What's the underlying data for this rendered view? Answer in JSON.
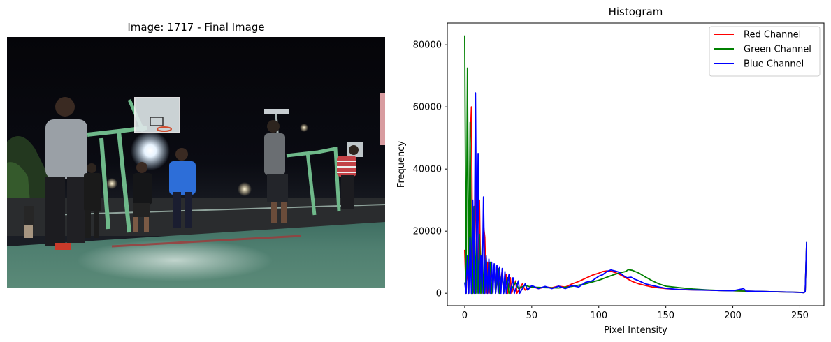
{
  "left_panel": {
    "title": "Image: 1717 - Final Image"
  },
  "chart_data": {
    "type": "line",
    "title": "Histogram",
    "xlabel": "Pixel Intensity",
    "ylabel": "Frequency",
    "xlim": [
      -13,
      268
    ],
    "ylim": [
      -4000,
      87000
    ],
    "xticks": [
      0,
      50,
      100,
      150,
      200,
      250
    ],
    "yticks": [
      0,
      20000,
      40000,
      60000,
      80000
    ],
    "grid": false,
    "legend": "top-right",
    "series": [
      {
        "name": "Red Channel",
        "color": "#ff0000",
        "points": [
          [
            0,
            14000
          ],
          [
            1,
            0
          ],
          [
            2,
            9000
          ],
          [
            3,
            0
          ],
          [
            4,
            48000
          ],
          [
            5,
            60000
          ],
          [
            6,
            0
          ],
          [
            7,
            5000
          ],
          [
            8,
            42000
          ],
          [
            9,
            0
          ],
          [
            10,
            8000
          ],
          [
            11,
            30000
          ],
          [
            12,
            0
          ],
          [
            13,
            10000
          ],
          [
            14,
            22000
          ],
          [
            15,
            18000
          ],
          [
            16,
            0
          ],
          [
            17,
            10000
          ],
          [
            18,
            0
          ],
          [
            19,
            9000
          ],
          [
            20,
            0
          ],
          [
            22,
            9000
          ],
          [
            23,
            0
          ],
          [
            25,
            8000
          ],
          [
            26,
            0
          ],
          [
            28,
            7500
          ],
          [
            29,
            0
          ],
          [
            31,
            6000
          ],
          [
            32,
            0
          ],
          [
            34,
            5000
          ],
          [
            35,
            0
          ],
          [
            38,
            4000
          ],
          [
            39,
            0
          ],
          [
            43,
            3000
          ],
          [
            45,
            1000
          ],
          [
            50,
            2200
          ],
          [
            55,
            1500
          ],
          [
            60,
            2000
          ],
          [
            65,
            1800
          ],
          [
            70,
            2300
          ],
          [
            75,
            2000
          ],
          [
            80,
            3000
          ],
          [
            85,
            3800
          ],
          [
            90,
            4800
          ],
          [
            95,
            5800
          ],
          [
            100,
            6500
          ],
          [
            103,
            7000
          ],
          [
            106,
            7200
          ],
          [
            110,
            7000
          ],
          [
            115,
            6200
          ],
          [
            120,
            5000
          ],
          [
            125,
            3800
          ],
          [
            130,
            3000
          ],
          [
            135,
            2500
          ],
          [
            140,
            2000
          ],
          [
            150,
            1500
          ],
          [
            160,
            1200
          ],
          [
            170,
            1100
          ],
          [
            180,
            1000
          ],
          [
            190,
            900
          ],
          [
            200,
            800
          ],
          [
            210,
            700
          ],
          [
            220,
            600
          ],
          [
            230,
            500
          ],
          [
            240,
            400
          ],
          [
            250,
            300
          ],
          [
            253,
            200
          ],
          [
            254,
            500
          ],
          [
            255,
            16000
          ]
        ]
      },
      {
        "name": "Green Channel",
        "color": "#008000",
        "points": [
          [
            0,
            83000
          ],
          [
            1,
            0
          ],
          [
            2,
            72500
          ],
          [
            3,
            0
          ],
          [
            4,
            55000
          ],
          [
            5,
            0
          ],
          [
            6,
            0
          ],
          [
            7,
            28000
          ],
          [
            8,
            0
          ],
          [
            9,
            22000
          ],
          [
            10,
            0
          ],
          [
            11,
            19000
          ],
          [
            12,
            0
          ],
          [
            13,
            16000
          ],
          [
            14,
            0
          ],
          [
            16,
            12000
          ],
          [
            17,
            0
          ],
          [
            19,
            10000
          ],
          [
            20,
            0
          ],
          [
            22,
            9000
          ],
          [
            23,
            0
          ],
          [
            25,
            8000
          ],
          [
            26,
            0
          ],
          [
            28,
            7000
          ],
          [
            29,
            0
          ],
          [
            32,
            5000
          ],
          [
            33,
            0
          ],
          [
            38,
            3500
          ],
          [
            40,
            1500
          ],
          [
            45,
            2500
          ],
          [
            50,
            2000
          ],
          [
            60,
            1800
          ],
          [
            70,
            1700
          ],
          [
            80,
            2200
          ],
          [
            90,
            3000
          ],
          [
            100,
            4200
          ],
          [
            110,
            5800
          ],
          [
            115,
            6500
          ],
          [
            120,
            7000
          ],
          [
            122,
            7600
          ],
          [
            125,
            7400
          ],
          [
            130,
            6500
          ],
          [
            135,
            5200
          ],
          [
            140,
            4000
          ],
          [
            145,
            3000
          ],
          [
            150,
            2300
          ],
          [
            160,
            1800
          ],
          [
            170,
            1400
          ],
          [
            180,
            1100
          ],
          [
            190,
            900
          ],
          [
            200,
            800
          ],
          [
            210,
            700
          ],
          [
            220,
            600
          ],
          [
            230,
            500
          ],
          [
            240,
            400
          ],
          [
            250,
            300
          ],
          [
            253,
            200
          ],
          [
            254,
            500
          ],
          [
            255,
            16500
          ]
        ]
      },
      {
        "name": "Blue Channel",
        "color": "#0000ff",
        "points": [
          [
            0,
            3500
          ],
          [
            1,
            0
          ],
          [
            2,
            12000
          ],
          [
            3,
            0
          ],
          [
            4,
            18000
          ],
          [
            5,
            0
          ],
          [
            6,
            30000
          ],
          [
            7,
            0
          ],
          [
            8,
            64500
          ],
          [
            9,
            0
          ],
          [
            10,
            45000
          ],
          [
            11,
            0
          ],
          [
            12,
            12000
          ],
          [
            13,
            0
          ],
          [
            14,
            31000
          ],
          [
            15,
            0
          ],
          [
            16,
            12000
          ],
          [
            17,
            0
          ],
          [
            18,
            11000
          ],
          [
            19,
            0
          ],
          [
            20,
            10000
          ],
          [
            21,
            0
          ],
          [
            22,
            9500
          ],
          [
            23,
            0
          ],
          [
            24,
            9000
          ],
          [
            25,
            0
          ],
          [
            26,
            8500
          ],
          [
            27,
            0
          ],
          [
            28,
            8000
          ],
          [
            29,
            0
          ],
          [
            30,
            7000
          ],
          [
            31,
            0
          ],
          [
            33,
            6000
          ],
          [
            34,
            0
          ],
          [
            36,
            5000
          ],
          [
            37,
            0
          ],
          [
            40,
            4000
          ],
          [
            41,
            0
          ],
          [
            45,
            3000
          ],
          [
            47,
            1000
          ],
          [
            50,
            2500
          ],
          [
            55,
            1500
          ],
          [
            60,
            2200
          ],
          [
            65,
            1500
          ],
          [
            70,
            2300
          ],
          [
            75,
            1500
          ],
          [
            80,
            2500
          ],
          [
            85,
            2000
          ],
          [
            90,
            3500
          ],
          [
            95,
            4000
          ],
          [
            100,
            5500
          ],
          [
            103,
            6000
          ],
          [
            106,
            7000
          ],
          [
            109,
            7500
          ],
          [
            112,
            7200
          ],
          [
            115,
            6800
          ],
          [
            118,
            5800
          ],
          [
            121,
            5000
          ],
          [
            124,
            5200
          ],
          [
            127,
            4500
          ],
          [
            130,
            4000
          ],
          [
            135,
            3000
          ],
          [
            140,
            2500
          ],
          [
            145,
            2000
          ],
          [
            150,
            1600
          ],
          [
            155,
            1400
          ],
          [
            160,
            1200
          ],
          [
            170,
            1100
          ],
          [
            180,
            1000
          ],
          [
            190,
            900
          ],
          [
            200,
            800
          ],
          [
            208,
            1500
          ],
          [
            210,
            700
          ],
          [
            220,
            600
          ],
          [
            230,
            500
          ],
          [
            240,
            400
          ],
          [
            250,
            300
          ],
          [
            253,
            200
          ],
          [
            254,
            500
          ],
          [
            255,
            16500
          ]
        ]
      }
    ]
  }
}
